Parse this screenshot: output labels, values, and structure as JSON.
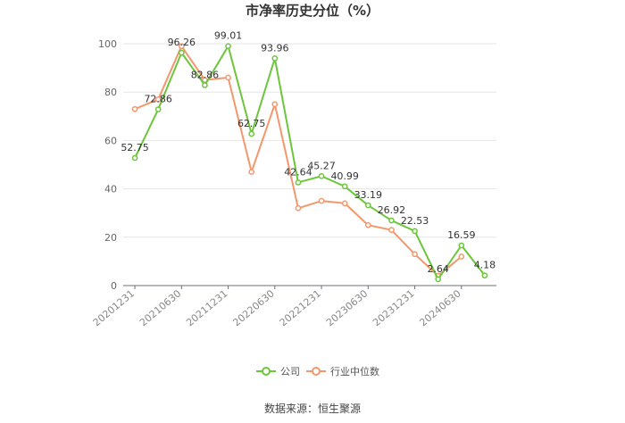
{
  "chart_data": {
    "type": "line",
    "title": "市净率历史分位（%）",
    "xlabel": "",
    "ylabel": "",
    "ylim": [
      0,
      100
    ],
    "yticks": [
      0,
      20,
      40,
      60,
      80,
      100
    ],
    "x": [
      "20201231",
      "20210331",
      "20210630",
      "20210930",
      "20211231",
      "20220331",
      "20220630",
      "20220930",
      "20221231",
      "20230331",
      "20230630",
      "20230930",
      "20231231",
      "20240331",
      "20240630",
      "20240930"
    ],
    "xtick_labels": [
      "20201231",
      "20210630",
      "20211231",
      "20220630",
      "20221231",
      "20230630",
      "20231231",
      "20240630"
    ],
    "series": [
      {
        "name": "公司",
        "color": "#6cc63b",
        "values": [
          52.75,
          72.86,
          96.26,
          82.86,
          99.01,
          62.75,
          93.96,
          42.64,
          45.27,
          40.99,
          33.19,
          26.92,
          22.53,
          2.64,
          16.59,
          4.18
        ],
        "labels": [
          "52.75",
          "72.86",
          "96.26",
          "82.86",
          "99.01",
          "62.75",
          "93.96",
          "42.64",
          "45.27",
          "40.99",
          "33.19",
          "26.92",
          "22.53",
          "2.64",
          "16.59",
          "4.18"
        ]
      },
      {
        "name": "行业中位数",
        "color": "#f4976c",
        "values": [
          73,
          77,
          99,
          85,
          86,
          47,
          75,
          32,
          35,
          34,
          25,
          23,
          13,
          4,
          12,
          null
        ]
      }
    ],
    "legend_position": "bottom",
    "grid": true
  },
  "footer": {
    "source": "数据来源：恒生聚源"
  }
}
